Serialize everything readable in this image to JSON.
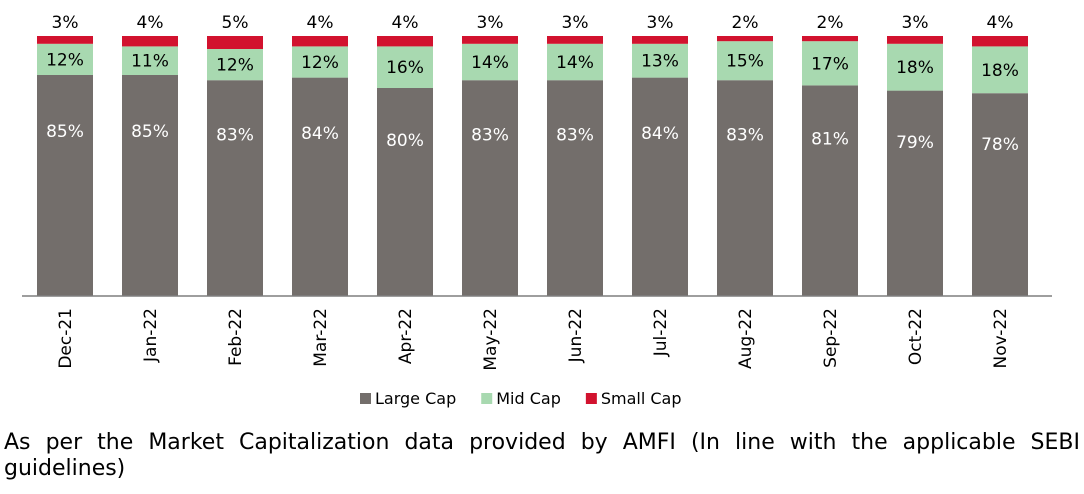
{
  "chart_data": {
    "type": "bar",
    "stacked": true,
    "normalized_percent": true,
    "categories": [
      "Dec-21",
      "Jan-22",
      "Feb-22",
      "Mar-22",
      "Apr-22",
      "May-22",
      "Jun-22",
      "Jul-22",
      "Aug-22",
      "Sep-22",
      "Oct-22",
      "Nov-22"
    ],
    "series": [
      {
        "name": "Large Cap",
        "color": "#736e6b",
        "values": [
          85,
          85,
          83,
          84,
          80,
          83,
          83,
          84,
          83,
          81,
          79,
          78
        ]
      },
      {
        "name": "Mid Cap",
        "color": "#a8d9b0",
        "values": [
          12,
          11,
          12,
          12,
          16,
          14,
          14,
          13,
          15,
          17,
          18,
          18
        ]
      },
      {
        "name": "Small Cap",
        "color": "#d2122e",
        "values": [
          3,
          4,
          5,
          4,
          4,
          3,
          3,
          3,
          2,
          2,
          3,
          4
        ]
      }
    ],
    "ylim": [
      0,
      100
    ],
    "data_labels": "percent",
    "legend_position": "bottom",
    "grid": false
  },
  "footnote": "As per the Market Capitalization data provided by AMFI (In line with the applicable SEBI guidelines)"
}
